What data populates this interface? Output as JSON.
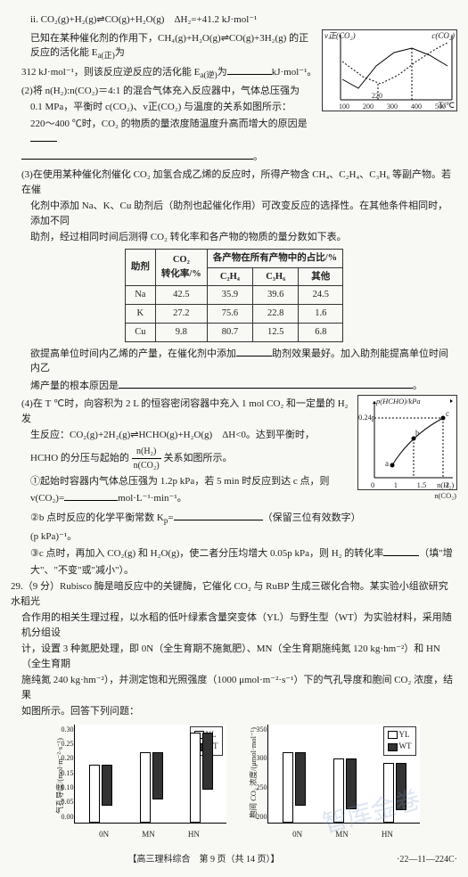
{
  "q28": {
    "eqII": "ii. CO₂(g)+H₂(g)⇌CO(g)+H₂O(g)　ΔH₂=+41.2 kJ·mol⁻¹",
    "line1a": "已知在某种催化剂的作用下，CH₄(g)+H₂O(g)⇌CO(g)+3H₂(g) 的正反应的活化能 E",
    "line1a_sub": "a(正)",
    "line1a_tail": "为",
    "line1b_pre": "312 kJ·mol⁻¹，则该反应逆反应的活化能 E",
    "line1b_sub": "a(逆)",
    "line1b_mid": "为",
    "line1b_post": "kJ·mol⁻¹。",
    "p2a": "(2)将 n(H₂):n(CO₂)＝4:1 的混合气体充入反应器中，气体总压强为",
    "p2b": "0.1 MPa，平衡时 c(CO₂)、v正(CO₂) 与温度的关系如图所示：",
    "p2c_pre": "220～400 ℃时，CO₂ 的物质的量浓度随温度升高而增大的原因是",
    "p2c_post": "。",
    "chart1": {
      "ylabel_left": "v正(CO₂)",
      "ylabel_right": "c(CO₂)",
      "xlabel": "T/℃",
      "xticks": [
        "100",
        "200",
        "220",
        "300",
        "400",
        "500"
      ]
    },
    "p3a": "(3)在使用某种催化剂催化 CO₂ 加氢合成乙烯的反应时，所得产物含 CH₄、C₂H₄、C₃H₆ 等副产物。若在催",
    "p3b": "化剂中添加 Na、K、Cu 助剂后（助剂也起催化作用）可改变反应的选择性。在其他条件相同时，添加不同",
    "p3c": "助剂，经过相同时间后测得 CO₂ 转化率和各产物的物质的量分数如下表。",
    "table": {
      "h1": "助剂",
      "h2": "CO₂\n转化率/%",
      "h3": "各产物在所有产物中的占比/%",
      "sub": [
        "C₂H₄",
        "C₃H₆",
        "其他"
      ],
      "rows": [
        [
          "Na",
          "42.5",
          "35.9",
          "39.6",
          "24.5"
        ],
        [
          "K",
          "27.2",
          "75.6",
          "22.8",
          "1.6"
        ],
        [
          "Cu",
          "9.8",
          "80.7",
          "12.5",
          "6.8"
        ]
      ]
    },
    "p3d_pre": "欲提高单位时间内乙烯的产量，在催化剂中添加",
    "p3d_mid": "助剂效果最好。加入助剂能提高单位时间内乙",
    "p3e_pre": "烯产量的根本原因是",
    "p3e_post": "。",
    "p4a": "(4)在 T ℃时，向容积为 2 L 的恒容密闭容器中充入 1 mol CO₂ 和一定量的 H₂ 发",
    "p4b": "生反应：CO₂(g)+2H₂(g)⇌HCHO(g)+H₂O(g)　ΔH<0。达到平衡时，",
    "p4b_val": "0.24p",
    "p4c_pre": "HCHO 的分压与起始的",
    "p4c_frac_top": "n(H₂)",
    "p4c_frac_bot": "n(CO₂)",
    "p4c_post": "关系如图所示。",
    "chart2": {
      "ylabel": "p(HCHO)/kPa",
      "xlabel": "n(H₂)\nn(CO₂)",
      "xticks": [
        "0",
        "1",
        "1.5",
        "2"
      ],
      "points": [
        "a",
        "b",
        "c"
      ]
    },
    "p4_i_pre": "①起始时容器内气体总压强为 1.2p kPa，若 5 min 时反应到达 c 点，则",
    "p4_i_v": "v(CO₂)=",
    "p4_i_unit": "mol·L⁻¹·min⁻¹。",
    "p4_ii_pre": "②b 点时反应的化学平衡常数 K",
    "p4_ii_sub": "p",
    "p4_ii_mid": "=",
    "p4_ii_note": "（保留三位有效数字）",
    "p4_ii_unit": "(p kPa)⁻¹。",
    "p4_iii_a": "③c 点时，再加入 CO₂(g) 和 H₂O(g)，使二者分压均增大 0.05p kPa，则 H₂ 的转化率",
    "p4_iii_b": "（填\"增",
    "p4_iii_c": "大\"、\"不变\"或\"减小\"）。"
  },
  "q29": {
    "head": "29.（9 分）Rubisco 酶是暗反应中的关键酶，它催化 CO₂ 与 RuBP 生成三碳化合物。某实验小组欲研究水稻光",
    "l2": "合作用的相关生理过程，以水稻的低叶绿素含量突变体（YL）与野生型（WT）为实验材料，采用随机分组设",
    "l3": "计，设置 3 种氮肥处理，即 0N（全生育期不施氮肥）、MN（全生育期施纯氮 120 kg·hm⁻²）和 HN（全生育期",
    "l4": "施纯氮 240 kg·hm⁻²），并测定饱和光照强度（1000 μmol·m⁻²·s⁻¹）下的气孔导度和胞间 CO₂ 浓度，结果",
    "l5": "如图所示。回答下列问题：",
    "chartL": {
      "ylabel": "气孔导度/(mol·m⁻²·s⁻¹)",
      "yticks": [
        "0.00",
        "0.05",
        "0.10",
        "0.15",
        "0.20",
        "0.25",
        "0.30"
      ],
      "xticks": [
        "0N",
        "MN",
        "HN"
      ],
      "legend": {
        "yl": "YL",
        "wt": "WT"
      },
      "yl_vals": [
        0.17,
        0.21,
        0.27
      ],
      "wt_vals": [
        0.12,
        0.14,
        0.17
      ],
      "ymax": 0.3
    },
    "chartR": {
      "ylabel": "胞间 CO₂ 浓度/(μmol·mol⁻¹)",
      "yticks": [
        "200",
        "250",
        "300",
        "350"
      ],
      "xticks": [
        "0N",
        "MN",
        "HN"
      ],
      "legend": {
        "yl": "YL",
        "wt": "WT"
      },
      "yl_vals": [
        305,
        295,
        288
      ],
      "wt_vals": [
        280,
        275,
        270
      ],
      "ymin": 200,
      "ymax": 350
    }
  },
  "footer": {
    "text": "【高三理科综合　第 9 页（共 14 页）】",
    "code": "·22—11—224C·"
  }
}
